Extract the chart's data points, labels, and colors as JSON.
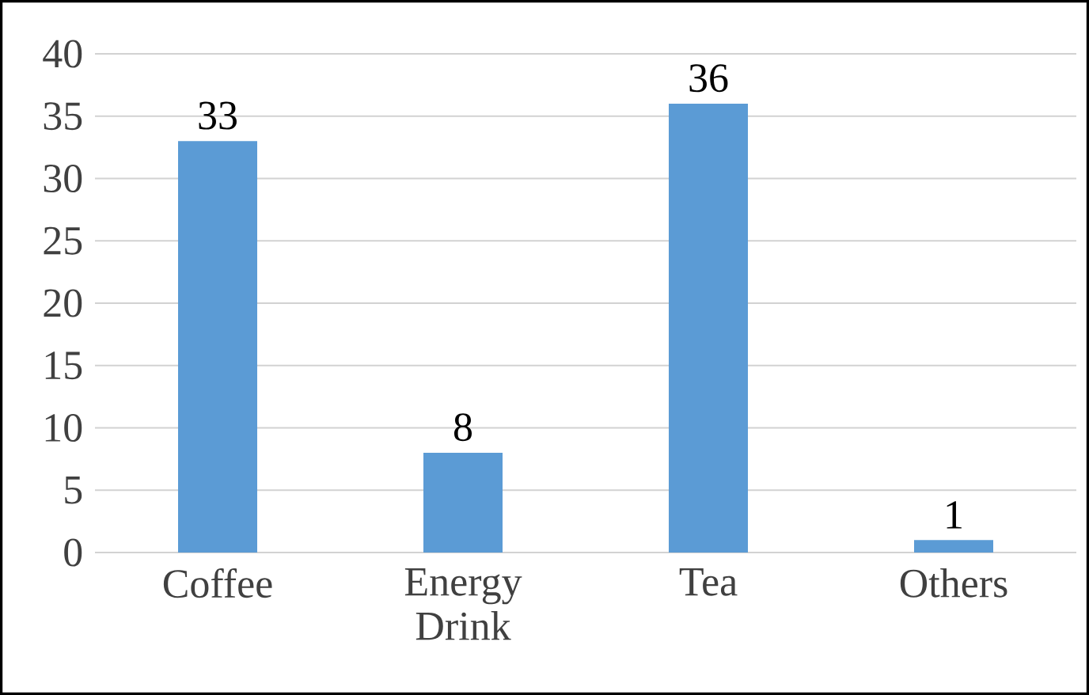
{
  "chart_data": {
    "type": "bar",
    "categories": [
      "Coffee",
      "Energy Drink",
      "Tea",
      "Others"
    ],
    "values": [
      33,
      8,
      36,
      1
    ],
    "color": "#5b9bd5",
    "ylim": [
      0,
      40
    ],
    "yticks": [
      0,
      5,
      10,
      15,
      20,
      25,
      30,
      35,
      40
    ],
    "grid": "y",
    "data_labels": true
  }
}
